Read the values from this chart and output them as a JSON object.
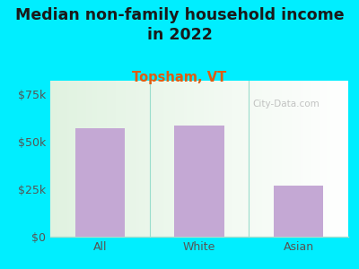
{
  "title": "Median non-family household income\nin 2022",
  "subtitle": "Topsham, VT",
  "categories": [
    "All",
    "White",
    "Asian"
  ],
  "values": [
    57000,
    58500,
    27000
  ],
  "bar_color": "#c4a8d4",
  "background_outer": "#00eeff",
  "background_plot": "#e8f5e2",
  "title_fontsize": 12.5,
  "subtitle_fontsize": 10.5,
  "tick_label_fontsize": 9,
  "axis_tick_fontsize": 9,
  "ylim": [
    0,
    82000
  ],
  "yticks": [
    0,
    25000,
    50000,
    75000
  ],
  "ytick_labels": [
    "$0",
    "$25k",
    "$50k",
    "$75k"
  ],
  "watermark": "City-Data.com",
  "subtitle_color": "#e05c10",
  "title_color": "#1a1a1a",
  "tick_color": "#555555",
  "spine_color": "#aaddcc"
}
